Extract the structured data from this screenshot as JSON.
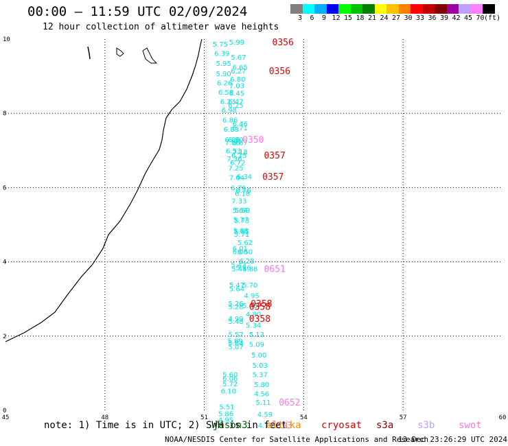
{
  "header": {
    "title": "00:00 – 11:59 UTC 02/09/2024",
    "subtitle": "12 hour collection of altimeter wave heights"
  },
  "colorbar": {
    "colors": [
      "#808080",
      "#00ffff",
      "#00b0ff",
      "#0000ff",
      "#00ff00",
      "#00c000",
      "#008000",
      "#ffff00",
      "#ffc000",
      "#ff8000",
      "#ff0000",
      "#c00000",
      "#800000",
      "#a000a0",
      "#c0a0ff",
      "#ff80ff",
      "#000000"
    ],
    "labels": [
      "3",
      "6",
      "9",
      "12",
      "15",
      "18",
      "21",
      "24",
      "27",
      "30",
      "33",
      "36",
      "39",
      "42",
      "45",
      "70",
      "(ft)"
    ]
  },
  "map": {
    "x_ticks": [
      "45",
      "48",
      "51",
      "54",
      "57",
      "60"
    ],
    "y_ticks": [
      "0",
      "2",
      "4",
      "6",
      "8",
      "10"
    ],
    "lon_range": [
      45,
      60
    ],
    "lat_range": [
      0,
      10
    ],
    "obs": [
      {
        "t": "5.99",
        "lon": 51.75,
        "lat": 9.93,
        "c": "#00e0e0"
      },
      {
        "t": "5.75",
        "lon": 51.25,
        "lat": 9.87,
        "c": "#00e0e0"
      },
      {
        "t": "6.39",
        "lon": 51.3,
        "lat": 9.62,
        "c": "#00e0e0"
      },
      {
        "t": "5.67",
        "lon": 51.8,
        "lat": 9.52,
        "c": "#00e0e0"
      },
      {
        "t": "5.95",
        "lon": 51.35,
        "lat": 9.35,
        "c": "#00e0e0"
      },
      {
        "t": "6.65",
        "lon": 51.85,
        "lat": 9.25,
        "c": "#00e0e0"
      },
      {
        "t": "6.27",
        "lon": 51.8,
        "lat": 9.15,
        "c": "#00e0e0"
      },
      {
        "t": "5.90",
        "lon": 51.35,
        "lat": 9.08,
        "c": "#00e0e0"
      },
      {
        "t": "6.80",
        "lon": 51.78,
        "lat": 8.93,
        "c": "#00e0e0"
      },
      {
        "t": "6.26",
        "lon": 51.38,
        "lat": 8.83,
        "c": "#00e0e0"
      },
      {
        "t": "7.03",
        "lon": 51.75,
        "lat": 8.75,
        "c": "#00e0e0"
      },
      {
        "t": "6.58",
        "lon": 51.42,
        "lat": 8.58,
        "c": "#00e0e0"
      },
      {
        "t": "6.45",
        "lon": 51.75,
        "lat": 8.55,
        "c": "#00e0e0"
      },
      {
        "t": "6.23",
        "lon": 51.48,
        "lat": 8.33,
        "c": "#00e0e0"
      },
      {
        "t": "6.47",
        "lon": 51.72,
        "lat": 8.33,
        "c": "#00e0e0"
      },
      {
        "t": "6.25",
        "lon": 51.72,
        "lat": 8.23,
        "c": "#00e0e0"
      },
      {
        "t": "6.98",
        "lon": 51.52,
        "lat": 8.1,
        "c": "#00e0e0"
      },
      {
        "t": "6.86",
        "lon": 51.55,
        "lat": 7.83,
        "c": "#00e0e0"
      },
      {
        "t": "6.46",
        "lon": 51.85,
        "lat": 7.73,
        "c": "#00e0e0"
      },
      {
        "t": "6.83",
        "lon": 51.58,
        "lat": 7.58,
        "c": "#00e0e0"
      },
      {
        "t": "6.71",
        "lon": 51.85,
        "lat": 7.62,
        "c": "#00e0e0"
      },
      {
        "t": "6.86",
        "lon": 51.62,
        "lat": 7.3,
        "c": "#00e0e0"
      },
      {
        "t": "6.90",
        "lon": 51.72,
        "lat": 7.3,
        "c": "#00e0e0"
      },
      {
        "t": "7.06",
        "lon": 51.62,
        "lat": 7.22,
        "c": "#00e0e0"
      },
      {
        "t": "6.67",
        "lon": 51.85,
        "lat": 7.22,
        "c": "#00e0e0"
      },
      {
        "t": "6.53",
        "lon": 51.65,
        "lat": 7.0,
        "c": "#00e0e0"
      },
      {
        "t": "7.18",
        "lon": 51.85,
        "lat": 6.97,
        "c": "#00e0e0"
      },
      {
        "t": "6.15",
        "lon": 51.82,
        "lat": 6.88,
        "c": "#00e0e0"
      },
      {
        "t": "7.36",
        "lon": 51.68,
        "lat": 6.78,
        "c": "#00e0e0"
      },
      {
        "t": "6.72",
        "lon": 51.78,
        "lat": 6.68,
        "c": "#00e0e0"
      },
      {
        "t": "7.25",
        "lon": 51.72,
        "lat": 6.53,
        "c": "#00e0e0"
      },
      {
        "t": "7.04",
        "lon": 51.75,
        "lat": 6.28,
        "c": "#00e0e0"
      },
      {
        "t": "6.34",
        "lon": 51.98,
        "lat": 6.3,
        "c": "#00e0e0"
      },
      {
        "t": "6.76",
        "lon": 51.8,
        "lat": 6.0,
        "c": "#00e0e0"
      },
      {
        "t": "6.76",
        "lon": 51.95,
        "lat": 5.93,
        "c": "#00e0e0"
      },
      {
        "t": "6.18",
        "lon": 51.92,
        "lat": 5.85,
        "c": "#00e0e0"
      },
      {
        "t": "7.33",
        "lon": 51.82,
        "lat": 5.65,
        "c": "#00e0e0"
      },
      {
        "t": "5.64",
        "lon": 51.85,
        "lat": 5.4,
        "c": "#00e0e0"
      },
      {
        "t": "5.69",
        "lon": 51.92,
        "lat": 5.4,
        "c": "#00e0e0"
      },
      {
        "t": "5.77",
        "lon": 51.87,
        "lat": 5.15,
        "c": "#00e0e0"
      },
      {
        "t": "5.73",
        "lon": 51.9,
        "lat": 5.12,
        "c": "#00e0e0"
      },
      {
        "t": "5.88",
        "lon": 51.87,
        "lat": 4.85,
        "c": "#00e0e0"
      },
      {
        "t": "5.85",
        "lon": 51.9,
        "lat": 4.82,
        "c": "#00e0e0"
      },
      {
        "t": "5.71",
        "lon": 51.9,
        "lat": 4.75,
        "c": "#00e0e0"
      },
      {
        "t": "5.62",
        "lon": 52.0,
        "lat": 4.53,
        "c": "#00e0e0"
      },
      {
        "t": "6.01",
        "lon": 51.85,
        "lat": 4.37,
        "c": "#00e0e0"
      },
      {
        "t": "6.50",
        "lon": 52.0,
        "lat": 4.28,
        "c": "#00e0e0"
      },
      {
        "t": "6.06",
        "lon": 51.85,
        "lat": 4.28,
        "c": "#00e0e0"
      },
      {
        "t": "6.28",
        "lon": 52.05,
        "lat": 4.03,
        "c": "#00e0e0"
      },
      {
        "t": "5.42",
        "lon": 51.8,
        "lat": 3.93,
        "c": "#00e0e0"
      },
      {
        "t": "5.76",
        "lon": 51.95,
        "lat": 3.85,
        "c": "#00e0e0"
      },
      {
        "t": "5.44",
        "lon": 51.82,
        "lat": 3.82,
        "c": "#00e0e0"
      },
      {
        "t": "5.88",
        "lon": 52.15,
        "lat": 3.82,
        "c": "#00e0e0"
      },
      {
        "t": "5.47",
        "lon": 51.75,
        "lat": 3.38,
        "c": "#00e0e0"
      },
      {
        "t": "5.70",
        "lon": 52.15,
        "lat": 3.38,
        "c": "#00e0e0"
      },
      {
        "t": "5.64",
        "lon": 51.75,
        "lat": 3.28,
        "c": "#00e0e0"
      },
      {
        "t": "4.95",
        "lon": 52.2,
        "lat": 3.1,
        "c": "#00e0e0"
      },
      {
        "t": "5.26",
        "lon": 51.72,
        "lat": 2.88,
        "c": "#00e0e0"
      },
      {
        "t": "5.28",
        "lon": 51.72,
        "lat": 2.8,
        "c": "#00e0e0"
      },
      {
        "t": "5.40",
        "lon": 52.15,
        "lat": 2.83,
        "c": "#00e0e0"
      },
      {
        "t": "4.80",
        "lon": 52.25,
        "lat": 2.6,
        "c": "#00e0e0"
      },
      {
        "t": "4.99",
        "lon": 51.72,
        "lat": 2.48,
        "c": "#00e0e0"
      },
      {
        "t": "5.48",
        "lon": 51.72,
        "lat": 2.4,
        "c": "#00e0e0"
      },
      {
        "t": "5.34",
        "lon": 52.25,
        "lat": 2.3,
        "c": "#00e0e0"
      },
      {
        "t": "5.57",
        "lon": 51.72,
        "lat": 2.05,
        "c": "#00e0e0"
      },
      {
        "t": "5.13",
        "lon": 52.35,
        "lat": 2.05,
        "c": "#00e0e0"
      },
      {
        "t": "5.89",
        "lon": 51.7,
        "lat": 1.88,
        "c": "#00e0e0"
      },
      {
        "t": "5.84",
        "lon": 51.72,
        "lat": 1.82,
        "c": "#00e0e0"
      },
      {
        "t": "5.07",
        "lon": 51.72,
        "lat": 1.72,
        "c": "#00e0e0"
      },
      {
        "t": "5.09",
        "lon": 52.35,
        "lat": 1.78,
        "c": "#00e0e0"
      },
      {
        "t": "5.00",
        "lon": 52.42,
        "lat": 1.5,
        "c": "#00e0e0"
      },
      {
        "t": "5.03",
        "lon": 52.45,
        "lat": 1.22,
        "c": "#00e0e0"
      },
      {
        "t": "5.60",
        "lon": 51.55,
        "lat": 0.97,
        "c": "#00e0e0"
      },
      {
        "t": "5.37",
        "lon": 52.45,
        "lat": 0.97,
        "c": "#00e0e0"
      },
      {
        "t": "6.06",
        "lon": 51.55,
        "lat": 0.87,
        "c": "#00e0e0"
      },
      {
        "t": "5.72",
        "lon": 51.55,
        "lat": 0.72,
        "c": "#00e0e0"
      },
      {
        "t": "5.80",
        "lon": 52.5,
        "lat": 0.7,
        "c": "#00e0e0"
      },
      {
        "t": "6.10",
        "lon": 51.5,
        "lat": 0.53,
        "c": "#00e0e0"
      },
      {
        "t": "4.56",
        "lon": 52.5,
        "lat": 0.45,
        "c": "#00e0e0"
      },
      {
        "t": "5.11",
        "lon": 52.55,
        "lat": 0.22,
        "c": "#00e0e0"
      },
      {
        "t": "5.51",
        "lon": 51.45,
        "lat": 0.1,
        "c": "#00e0e0"
      },
      {
        "t": "5.86",
        "lon": 51.42,
        "lat": -0.08,
        "c": "#00e0e0"
      },
      {
        "t": "4.59",
        "lon": 52.6,
        "lat": -0.1,
        "c": "#00e0e0"
      },
      {
        "t": "4.95",
        "lon": 51.42,
        "lat": -0.25,
        "c": "#00e0e0"
      },
      {
        "t": "4.76",
        "lon": 52.62,
        "lat": -0.4,
        "c": "#00e0e0"
      }
    ],
    "ids": [
      {
        "t": "0356",
        "lon": 53.05,
        "lat": 9.93,
        "c": "#dd0000"
      },
      {
        "t": "0356",
        "lon": 52.95,
        "lat": 9.15,
        "c": "#dd0000"
      },
      {
        "t": "0350",
        "lon": 52.15,
        "lat": 7.3,
        "c": "#ff77dd"
      },
      {
        "t": "0357",
        "lon": 52.8,
        "lat": 6.88,
        "c": "#dd0000"
      },
      {
        "t": "0357",
        "lon": 52.75,
        "lat": 6.3,
        "c": "#dd0000"
      },
      {
        "t": "0651",
        "lon": 52.8,
        "lat": 3.82,
        "c": "#ff77dd"
      },
      {
        "t": "0358",
        "lon": 52.4,
        "lat": 2.88,
        "c": "#dd0000"
      },
      {
        "t": "0358",
        "lon": 52.35,
        "lat": 2.8,
        "c": "#dd0000"
      },
      {
        "t": "0358",
        "lon": 52.35,
        "lat": 2.48,
        "c": "#dd0000"
      },
      {
        "t": "0652",
        "lon": 53.25,
        "lat": 0.22,
        "c": "#ff77dd"
      },
      {
        "t": "0653",
        "lon": 53.0,
        "lat": -0.4,
        "c": "#ff77dd"
      }
    ]
  },
  "footer": {
    "note": "note: 1) Time is in UTC; 2) SWH is in feet",
    "satellites": [
      {
        "name": "jason3",
        "color": "#006400",
        "left": 310
      },
      {
        "name": "altika",
        "color": "#ff8c00",
        "left": 388
      },
      {
        "name": "cryosat",
        "color": "#dd0000",
        "left": 468
      },
      {
        "name": "s3a",
        "color": "#8b0000",
        "left": 548
      },
      {
        "name": "s3b",
        "color": "#c0a0ff",
        "left": 608
      },
      {
        "name": "swot",
        "color": "#ff77dd",
        "left": 668
      }
    ],
    "credit": "NOAA/NESDIS Center for Satellite Applications and Research",
    "timestamp": "13 Dec 23:26:29 UTC 2024"
  }
}
